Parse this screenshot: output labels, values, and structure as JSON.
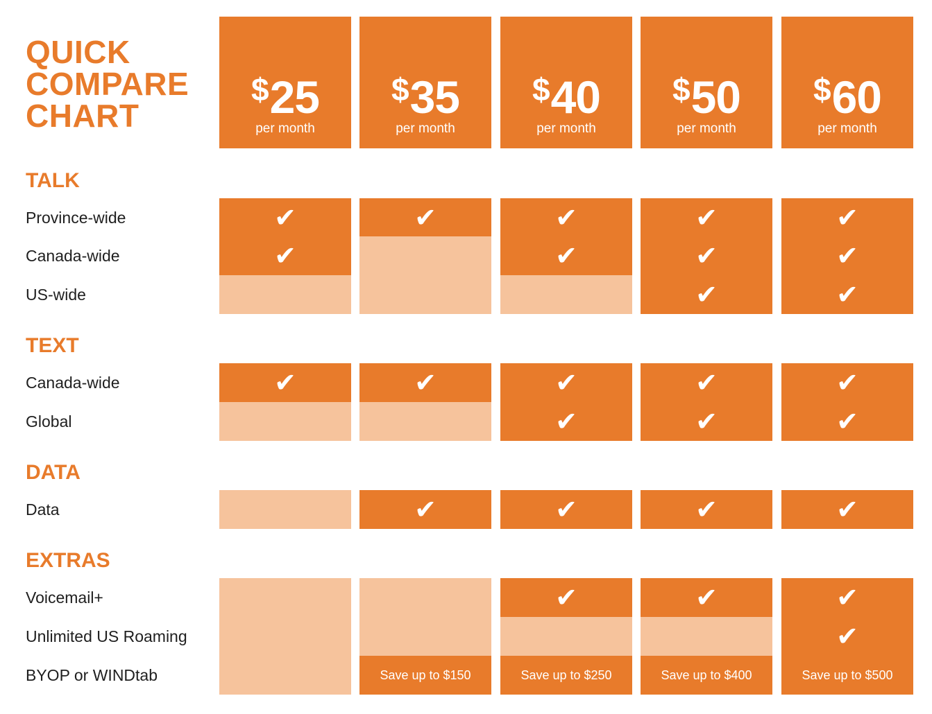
{
  "title": [
    "QUICK",
    "COMPARE",
    "CHART"
  ],
  "plans": [
    {
      "currency": "$",
      "amount": "25",
      "period": "per month"
    },
    {
      "currency": "$",
      "amount": "35",
      "period": "per month"
    },
    {
      "currency": "$",
      "amount": "40",
      "period": "per month"
    },
    {
      "currency": "$",
      "amount": "50",
      "period": "per month"
    },
    {
      "currency": "$",
      "amount": "60",
      "period": "per month"
    }
  ],
  "colors": {
    "accent": "#e87b2b",
    "light": "#f6c39c"
  },
  "check_glyph": "✔",
  "sections": [
    {
      "name": "TALK",
      "rows": [
        {
          "label": "Province-wide",
          "cells": [
            {
              "v": true
            },
            {
              "v": true
            },
            {
              "v": true
            },
            {
              "v": true
            },
            {
              "v": true
            }
          ]
        },
        {
          "label": "Canada-wide",
          "cells": [
            {
              "v": true
            },
            {
              "v": false
            },
            {
              "v": true
            },
            {
              "v": true
            },
            {
              "v": true
            }
          ]
        },
        {
          "label": "US-wide",
          "cells": [
            {
              "v": false
            },
            {
              "v": false
            },
            {
              "v": false
            },
            {
              "v": true
            },
            {
              "v": true
            }
          ]
        }
      ]
    },
    {
      "name": "TEXT",
      "rows": [
        {
          "label": "Canada-wide",
          "cells": [
            {
              "v": true
            },
            {
              "v": true
            },
            {
              "v": true
            },
            {
              "v": true
            },
            {
              "v": true
            }
          ]
        },
        {
          "label": "Global",
          "cells": [
            {
              "v": false
            },
            {
              "v": false
            },
            {
              "v": true
            },
            {
              "v": true
            },
            {
              "v": true
            }
          ]
        }
      ]
    },
    {
      "name": "DATA",
      "rows": [
        {
          "label": "Data",
          "cells": [
            {
              "v": false
            },
            {
              "v": true
            },
            {
              "v": true
            },
            {
              "v": true
            },
            {
              "v": true
            }
          ]
        }
      ]
    },
    {
      "name": "EXTRAS",
      "rows": [
        {
          "label": "Voicemail+",
          "cells": [
            {
              "v": false
            },
            {
              "v": false
            },
            {
              "v": true
            },
            {
              "v": true
            },
            {
              "v": true
            }
          ]
        },
        {
          "label": "Unlimited US Roaming",
          "cells": [
            {
              "v": false
            },
            {
              "v": false
            },
            {
              "v": false
            },
            {
              "v": false
            },
            {
              "v": true
            }
          ]
        },
        {
          "label": "BYOP or WINDtab",
          "cells": [
            {
              "v": false
            },
            {
              "v": true,
              "text": "Save up to $150"
            },
            {
              "v": true,
              "text": "Save up to $250"
            },
            {
              "v": true,
              "text": "Save up to $400"
            },
            {
              "v": true,
              "text": "Save up to $500"
            }
          ]
        }
      ]
    }
  ]
}
